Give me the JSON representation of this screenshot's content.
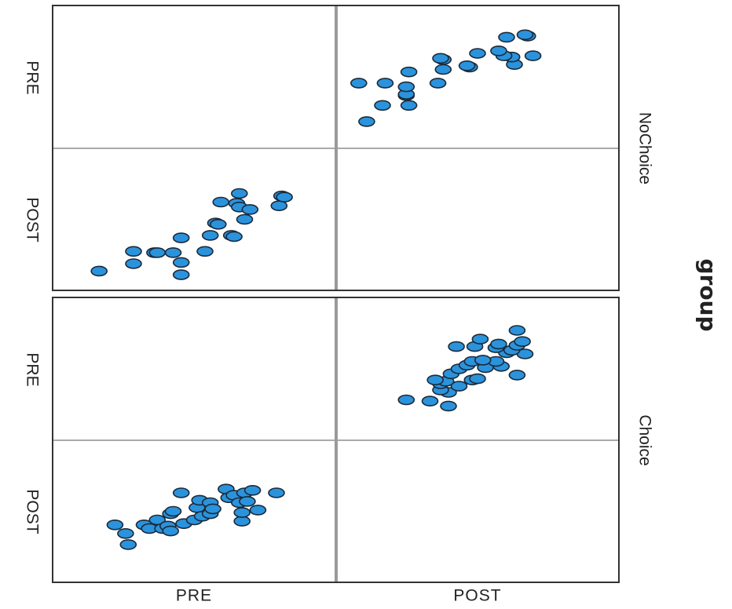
{
  "chart_data": {
    "type": "scatter",
    "chart_kind": "scatterplot matrix, paneled by group",
    "variables": [
      "PRE",
      "POST"
    ],
    "column_labels": [
      "PRE",
      "POST"
    ],
    "row_labels": [
      "PRE",
      "POST"
    ],
    "panel_title": "group",
    "colors": {
      "marker": "#2b93dc",
      "marker_edge": "#1b2a3a",
      "frame": "#333333",
      "divider": "#9a9a9a"
    },
    "scale": {
      "PRE": [
        0,
        10
      ],
      "POST": [
        0,
        10
      ]
    },
    "groups": [
      {
        "name": "NoChoice",
        "points": [
          {
            "PRE": 1.4,
            "POST": 0.8
          },
          {
            "PRE": 2.7,
            "POST": 2.4
          },
          {
            "PRE": 2.7,
            "POST": 1.4
          },
          {
            "PRE": 3.5,
            "POST": 2.3
          },
          {
            "PRE": 3.6,
            "POST": 2.3
          },
          {
            "PRE": 4.2,
            "POST": 2.3
          },
          {
            "PRE": 4.5,
            "POST": 3.5
          },
          {
            "PRE": 4.5,
            "POST": 1.5
          },
          {
            "PRE": 4.5,
            "POST": 0.5
          },
          {
            "PRE": 5.4,
            "POST": 2.4
          },
          {
            "PRE": 5.6,
            "POST": 3.7
          },
          {
            "PRE": 5.8,
            "POST": 4.7
          },
          {
            "PRE": 5.9,
            "POST": 4.6
          },
          {
            "PRE": 6.0,
            "POST": 6.4
          },
          {
            "PRE": 6.4,
            "POST": 3.7
          },
          {
            "PRE": 6.5,
            "POST": 3.6
          },
          {
            "PRE": 6.6,
            "POST": 6.3
          },
          {
            "PRE": 6.7,
            "POST": 7.1
          },
          {
            "PRE": 6.7,
            "POST": 6.0
          },
          {
            "PRE": 6.9,
            "POST": 5.0
          },
          {
            "PRE": 7.1,
            "POST": 5.8
          },
          {
            "PRE": 8.2,
            "POST": 6.1
          },
          {
            "PRE": 8.3,
            "POST": 6.9
          },
          {
            "PRE": 8.4,
            "POST": 6.8
          }
        ]
      },
      {
        "name": "Choice",
        "points": [
          {
            "PRE": 2.0,
            "POST": 3.9
          },
          {
            "PRE": 2.4,
            "POST": 3.2
          },
          {
            "PRE": 2.5,
            "POST": 2.3
          },
          {
            "PRE": 3.1,
            "POST": 3.9
          },
          {
            "PRE": 3.3,
            "POST": 3.6
          },
          {
            "PRE": 3.6,
            "POST": 4.3
          },
          {
            "PRE": 3.8,
            "POST": 3.6
          },
          {
            "PRE": 4.0,
            "POST": 3.8
          },
          {
            "PRE": 4.1,
            "POST": 4.8
          },
          {
            "PRE": 4.1,
            "POST": 3.4
          },
          {
            "PRE": 4.2,
            "POST": 5.0
          },
          {
            "PRE": 4.5,
            "POST": 6.5
          },
          {
            "PRE": 4.6,
            "POST": 4.0
          },
          {
            "PRE": 5.0,
            "POST": 4.3
          },
          {
            "PRE": 5.1,
            "POST": 5.3
          },
          {
            "PRE": 5.2,
            "POST": 5.9
          },
          {
            "PRE": 5.3,
            "POST": 4.6
          },
          {
            "PRE": 5.6,
            "POST": 4.8
          },
          {
            "PRE": 5.6,
            "POST": 5.7
          },
          {
            "PRE": 5.7,
            "POST": 5.2
          },
          {
            "PRE": 6.2,
            "POST": 6.8
          },
          {
            "PRE": 6.3,
            "POST": 6.1
          },
          {
            "PRE": 6.5,
            "POST": 6.3
          },
          {
            "PRE": 6.7,
            "POST": 5.7
          },
          {
            "PRE": 6.8,
            "POST": 4.2
          },
          {
            "PRE": 6.8,
            "POST": 4.9
          },
          {
            "PRE": 6.9,
            "POST": 6.5
          },
          {
            "PRE": 7.0,
            "POST": 5.8
          },
          {
            "PRE": 7.2,
            "POST": 6.7
          },
          {
            "PRE": 7.4,
            "POST": 5.1
          },
          {
            "PRE": 8.1,
            "POST": 6.5
          }
        ]
      }
    ]
  }
}
